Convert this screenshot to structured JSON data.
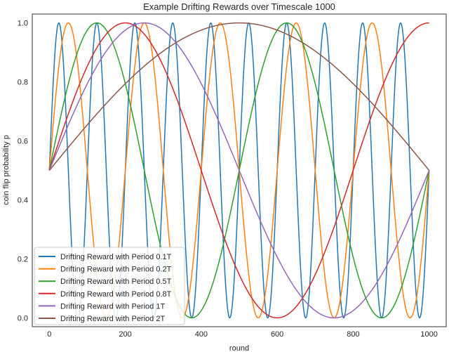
{
  "chart_data": {
    "type": "line",
    "title": "Example Drifting Rewards over Timescale 1000",
    "xlabel": "round",
    "ylabel": "coin flip probability p",
    "xlim": [
      -45,
      1045
    ],
    "ylim": [
      -0.03,
      1.03
    ],
    "xticks": [
      0,
      200,
      400,
      600,
      800,
      1000
    ],
    "yticks": [
      0.0,
      0.2,
      0.4,
      0.6,
      0.8,
      1.0
    ],
    "xtick_labels": [
      "0",
      "200",
      "400",
      "600",
      "800",
      "1000"
    ],
    "ytick_labels": [
      "0.0",
      "0.2",
      "0.4",
      "0.6",
      "0.8",
      "1.0"
    ],
    "grid": false,
    "legend_position": "lower-left",
    "series": [
      {
        "name": "Drifting Reward with Period 0.1T",
        "period": 100,
        "color": "#1f77b4"
      },
      {
        "name": "Drifting Reward with Period 0.2T",
        "period": 200,
        "color": "#ff7f0e"
      },
      {
        "name": "Drifting Reward with Period 0.5T",
        "period": 500,
        "color": "#2ca02c"
      },
      {
        "name": "Drifting Reward with Period 0.8T",
        "period": 800,
        "color": "#d62728"
      },
      {
        "name": "Drifting Reward with Period 1T",
        "period": 1000,
        "color": "#9467bd"
      },
      {
        "name": "Drifting Reward with Period 2T",
        "period": 2000,
        "color": "#8c564b"
      }
    ]
  }
}
